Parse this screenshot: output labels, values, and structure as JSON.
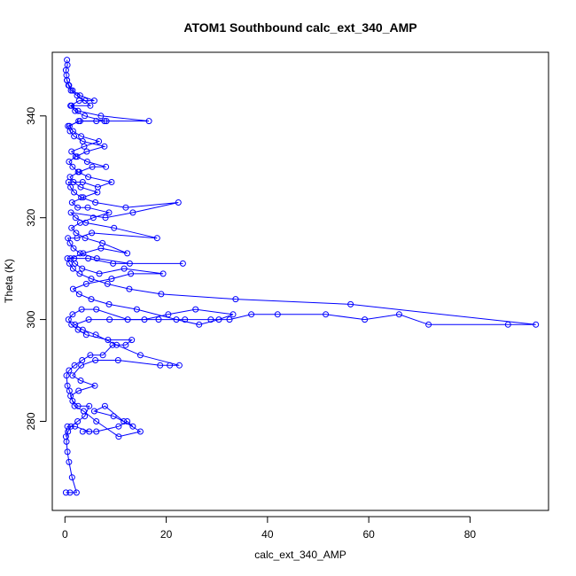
{
  "chart_data": {
    "type": "line",
    "title": "ATOM1 Southbound calc_ext_340_AMP",
    "xlabel": "calc_ext_340_AMP",
    "ylabel": "Theta (K)",
    "xlim": [
      -2.5,
      95.5
    ],
    "ylim": [
      262.5,
      352.5
    ],
    "xticks": [
      0,
      20,
      40,
      60,
      80
    ],
    "yticks": [
      280,
      300,
      320,
      340
    ],
    "grid": false,
    "legend": "none",
    "series": [
      {
        "marker": "open-circle",
        "points": [
          [
            0.2,
            266
          ],
          [
            1.0,
            266
          ],
          [
            2.3,
            266
          ],
          [
            1.4,
            269
          ],
          [
            0.8,
            272
          ],
          [
            0.5,
            274
          ],
          [
            0.3,
            276
          ],
          [
            0.6,
            278
          ],
          [
            1.2,
            279
          ],
          [
            2.5,
            280
          ],
          [
            3.9,
            281
          ],
          [
            4.8,
            283
          ],
          [
            2.6,
            283
          ],
          [
            1.5,
            284
          ],
          [
            0.9,
            286
          ],
          [
            0.5,
            287
          ],
          [
            0.3,
            289
          ],
          [
            0.8,
            290
          ],
          [
            1.9,
            291
          ],
          [
            3.4,
            292
          ],
          [
            5.0,
            293
          ],
          [
            7.5,
            293
          ],
          [
            9.4,
            295
          ],
          [
            12.0,
            295
          ],
          [
            13.2,
            296
          ],
          [
            8.5,
            296
          ],
          [
            4.2,
            297
          ],
          [
            2.6,
            298
          ],
          [
            1.3,
            299
          ],
          [
            0.7,
            300
          ],
          [
            1.5,
            301
          ],
          [
            3.3,
            302
          ],
          [
            6.2,
            302
          ],
          [
            12.4,
            300
          ],
          [
            18.5,
            300
          ],
          [
            23.7,
            300
          ],
          [
            28.8,
            300
          ],
          [
            32.5,
            300
          ],
          [
            36.8,
            301
          ],
          [
            42.0,
            301
          ],
          [
            51.5,
            301
          ],
          [
            59.2,
            300
          ],
          [
            66.0,
            301
          ],
          [
            71.8,
            299
          ],
          [
            87.5,
            299
          ],
          [
            93.0,
            299
          ],
          [
            56.4,
            303
          ],
          [
            33.7,
            304
          ],
          [
            19.0,
            305
          ],
          [
            12.7,
            306
          ],
          [
            8.4,
            307
          ],
          [
            5.2,
            308
          ],
          [
            2.9,
            309
          ],
          [
            1.6,
            310
          ],
          [
            0.9,
            311
          ],
          [
            0.5,
            312
          ],
          [
            1.8,
            312
          ],
          [
            4.6,
            312
          ],
          [
            9.5,
            311
          ],
          [
            23.3,
            311
          ],
          [
            12.8,
            311
          ],
          [
            6.3,
            312
          ],
          [
            3.0,
            313
          ],
          [
            1.7,
            314
          ],
          [
            1.0,
            315
          ],
          [
            0.6,
            316
          ],
          [
            2.4,
            316
          ],
          [
            5.3,
            317
          ],
          [
            18.2,
            316
          ],
          [
            9.7,
            318
          ],
          [
            4.1,
            319
          ],
          [
            2.1,
            320
          ],
          [
            1.2,
            321
          ],
          [
            8.0,
            320
          ],
          [
            13.4,
            321
          ],
          [
            22.4,
            323
          ],
          [
            12.0,
            322
          ],
          [
            6.0,
            323
          ],
          [
            3.2,
            324
          ],
          [
            1.8,
            325
          ],
          [
            1.1,
            326
          ],
          [
            0.7,
            327
          ],
          [
            3.5,
            327
          ],
          [
            6.5,
            326
          ],
          [
            9.2,
            327
          ],
          [
            4.6,
            328
          ],
          [
            2.6,
            329
          ],
          [
            1.5,
            330
          ],
          [
            0.8,
            331
          ],
          [
            2.1,
            332
          ],
          [
            4.3,
            333
          ],
          [
            7.8,
            334
          ],
          [
            3.5,
            335
          ],
          [
            1.8,
            336
          ],
          [
            1.0,
            337
          ],
          [
            0.6,
            338
          ],
          [
            3.0,
            339
          ],
          [
            8.2,
            339
          ],
          [
            16.6,
            339
          ],
          [
            7.1,
            340
          ],
          [
            2.6,
            341
          ],
          [
            1.3,
            342
          ],
          [
            5.0,
            342
          ],
          [
            4.0,
            343
          ],
          [
            2.4,
            344
          ],
          [
            1.2,
            345
          ],
          [
            0.7,
            346
          ],
          [
            0.4,
            347
          ],
          [
            0.3,
            348
          ],
          [
            0.2,
            349
          ],
          [
            0.5,
            350
          ],
          [
            0.4,
            351
          ]
        ]
      },
      {
        "marker": "open-circle",
        "points": [
          [
            0.2,
            277
          ],
          [
            0.5,
            279
          ],
          [
            2.0,
            279
          ],
          [
            4.8,
            278
          ],
          [
            3.5,
            278
          ],
          [
            6.2,
            278
          ],
          [
            10.6,
            279
          ],
          [
            12.3,
            280
          ],
          [
            13.4,
            279
          ],
          [
            9.6,
            281
          ],
          [
            5.8,
            282
          ],
          [
            7.9,
            283
          ],
          [
            11.6,
            280
          ],
          [
            14.9,
            278
          ],
          [
            10.6,
            277
          ],
          [
            6.2,
            280
          ],
          [
            3.7,
            282
          ],
          [
            1.9,
            283
          ],
          [
            1.1,
            285
          ],
          [
            2.7,
            286
          ],
          [
            5.9,
            287
          ],
          [
            3.1,
            288
          ],
          [
            1.5,
            289
          ],
          [
            3.2,
            291
          ],
          [
            6.0,
            292
          ],
          [
            10.5,
            292
          ],
          [
            18.8,
            291
          ],
          [
            20.7,
            291
          ],
          [
            22.6,
            291
          ],
          [
            14.9,
            293
          ],
          [
            10.2,
            295
          ],
          [
            6.1,
            297
          ],
          [
            3.5,
            298
          ],
          [
            2.0,
            299
          ],
          [
            4.7,
            300
          ],
          [
            8.8,
            300
          ],
          [
            15.7,
            300
          ],
          [
            20.4,
            301
          ],
          [
            25.8,
            302
          ],
          [
            33.2,
            301
          ],
          [
            30.4,
            300
          ],
          [
            26.5,
            299
          ],
          [
            22.0,
            300
          ],
          [
            14.2,
            302
          ],
          [
            8.7,
            303
          ],
          [
            5.2,
            304
          ],
          [
            2.8,
            305
          ],
          [
            1.6,
            306
          ],
          [
            4.2,
            307
          ],
          [
            9.2,
            308
          ],
          [
            13.0,
            309
          ],
          [
            19.4,
            309
          ],
          [
            11.7,
            310
          ],
          [
            6.8,
            309
          ],
          [
            3.4,
            310
          ],
          [
            2.0,
            311
          ],
          [
            1.1,
            312
          ],
          [
            3.6,
            313
          ],
          [
            7.1,
            314
          ],
          [
            12.3,
            313
          ],
          [
            7.4,
            315
          ],
          [
            4.0,
            316
          ],
          [
            2.2,
            317
          ],
          [
            1.3,
            318
          ],
          [
            3.0,
            319
          ],
          [
            5.6,
            320
          ],
          [
            8.7,
            321
          ],
          [
            4.5,
            322
          ],
          [
            2.5,
            322
          ],
          [
            1.4,
            323
          ],
          [
            3.6,
            324
          ],
          [
            6.4,
            325
          ],
          [
            3.1,
            326
          ],
          [
            1.7,
            327
          ],
          [
            1.0,
            328
          ],
          [
            2.8,
            329
          ],
          [
            5.4,
            330
          ],
          [
            8.1,
            330
          ],
          [
            4.4,
            331
          ],
          [
            2.4,
            332
          ],
          [
            1.3,
            333
          ],
          [
            3.8,
            334
          ],
          [
            6.7,
            335
          ],
          [
            3.2,
            336
          ],
          [
            1.6,
            337
          ],
          [
            0.9,
            338
          ],
          [
            2.7,
            339
          ],
          [
            6.2,
            339
          ],
          [
            7.8,
            339
          ],
          [
            3.9,
            340
          ],
          [
            2.0,
            341
          ],
          [
            1.1,
            342
          ],
          [
            2.8,
            343
          ],
          [
            5.8,
            343
          ],
          [
            3.0,
            344
          ],
          [
            1.5,
            345
          ],
          [
            0.8,
            346
          ],
          [
            0.4,
            347
          ]
        ]
      }
    ]
  }
}
